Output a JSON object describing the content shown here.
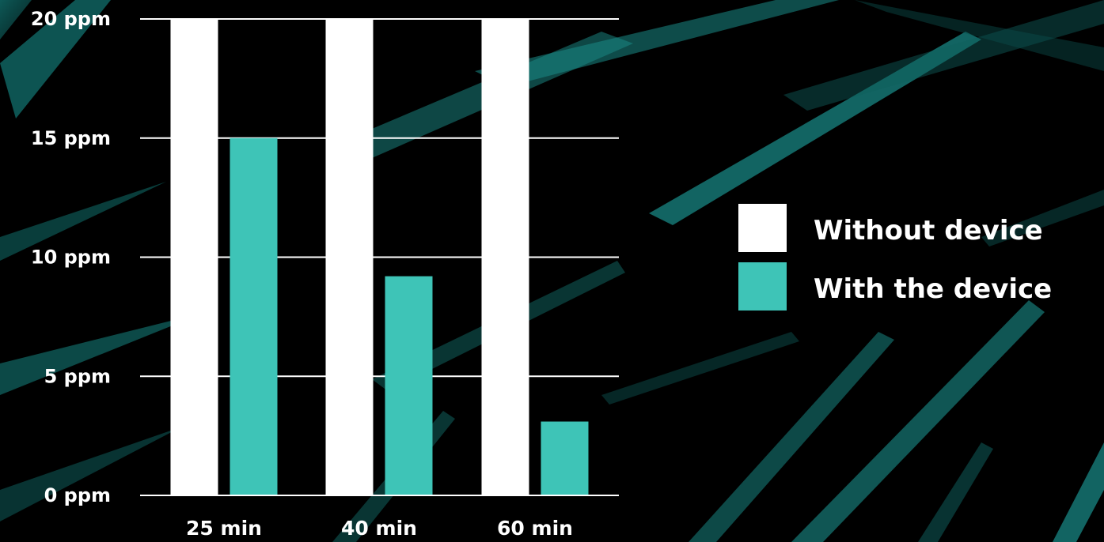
{
  "colors": {
    "background": "#000000",
    "streak": "#1a8f8c",
    "gridline": "#ffffff",
    "text": "#ffffff"
  },
  "chart_data": {
    "type": "bar",
    "title": "",
    "xlabel": "",
    "ylabel": "",
    "categories": [
      "25 min",
      "40 min",
      "60 min"
    ],
    "ylim": [
      0,
      20
    ],
    "yticks": [
      0,
      5,
      10,
      15,
      20
    ],
    "ytick_labels": [
      "0 ppm",
      "5 ppm",
      "10 ppm",
      "15 ppm",
      "20 ppm"
    ],
    "grid": true,
    "legend_position": "right",
    "series": [
      {
        "name": "Without device",
        "color": "#ffffff",
        "values": [
          20,
          20,
          20
        ]
      },
      {
        "name": "With the device",
        "color": "#3ec4b7",
        "values": [
          15,
          9.2,
          3.1
        ]
      }
    ]
  }
}
